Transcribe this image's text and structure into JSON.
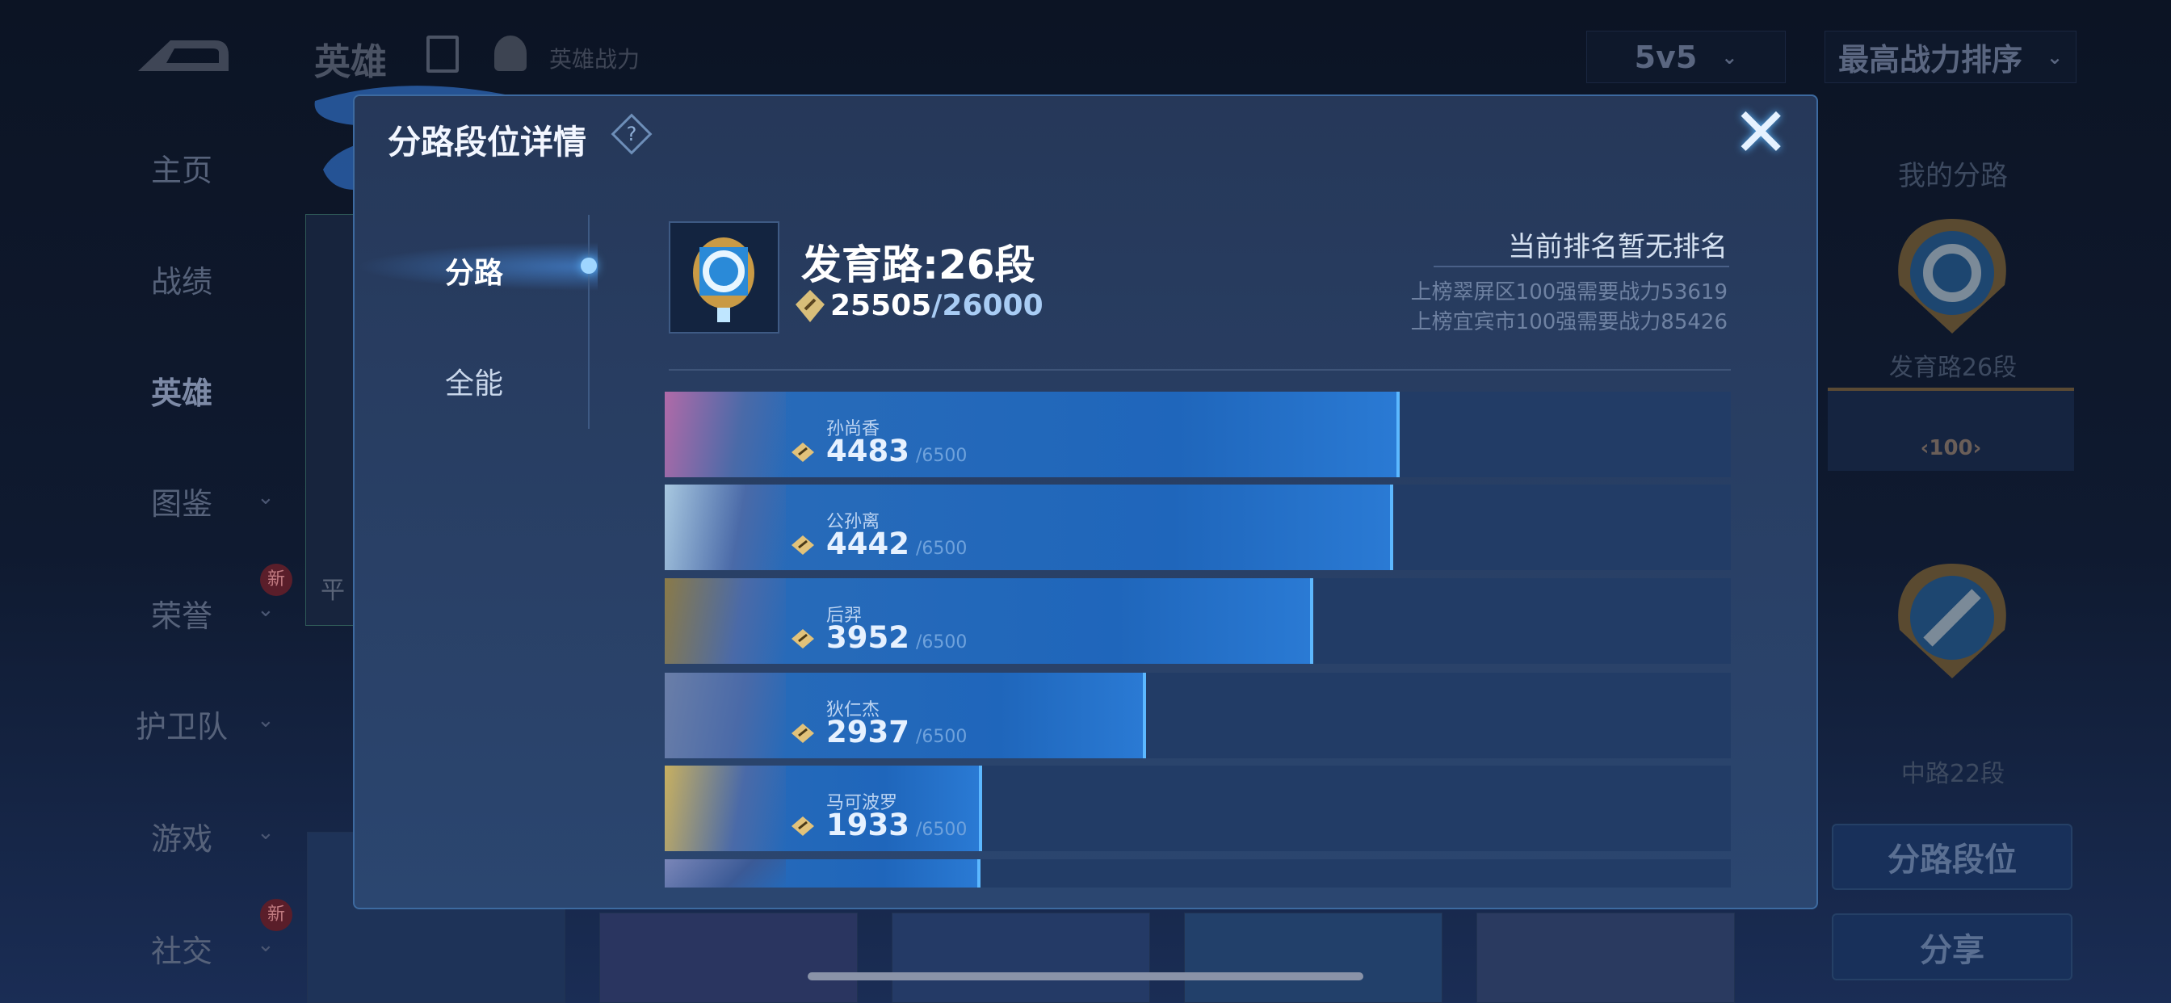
{
  "header": {
    "title": "英雄",
    "power_label": "英雄战力",
    "mode_select": "5v5",
    "sort_select": "最高战力排序"
  },
  "sidebar": {
    "items": [
      {
        "label": "主页",
        "chevron": false,
        "new": false
      },
      {
        "label": "战绩",
        "chevron": false,
        "new": false
      },
      {
        "label": "英雄",
        "chevron": false,
        "new": false,
        "active": true
      },
      {
        "label": "图鉴",
        "chevron": true,
        "new": false
      },
      {
        "label": "荣誉",
        "chevron": true,
        "new": true
      },
      {
        "label": "护卫队",
        "chevron": true,
        "new": false
      },
      {
        "label": "游戏",
        "chevron": true,
        "new": false
      },
      {
        "label": "社交",
        "chevron": true,
        "new": true
      }
    ],
    "new_badge": "新"
  },
  "right_panel": {
    "title": "我的分路",
    "lane1": "发育路26段",
    "banner_rank": "‹100›",
    "lane2": "中路22段",
    "lane_rank_button": "分路段位",
    "share_button": "分享"
  },
  "background_card": {
    "partial_text": "平"
  },
  "modal": {
    "title": "分路段位详情",
    "help_icon": "question-icon",
    "close_icon": "close-icon",
    "tabs": [
      {
        "label": "分路",
        "active": true
      },
      {
        "label": "全能",
        "active": false
      }
    ],
    "lane_title": "发育路:26段",
    "points_current": "25505",
    "points_sep": "/",
    "points_target": "26000",
    "rank_status": "当前排名暂无排名",
    "rank_req": [
      "上榜翠屏区100强需要战力53619",
      "上榜宜宾市100强需要战力85426"
    ],
    "max_power": 6500,
    "heroes": [
      {
        "name": "孙尚香",
        "power": 4483,
        "max": "/6500"
      },
      {
        "name": "公孙离",
        "power": 4442,
        "max": "/6500"
      },
      {
        "name": "后羿",
        "power": 3952,
        "max": "/6500"
      },
      {
        "name": "狄仁杰",
        "power": 2937,
        "max": "/6500"
      },
      {
        "name": "马可波罗",
        "power": 1933,
        "max": "/6500"
      }
    ],
    "partial_row_fill": 0.296
  },
  "colors": {
    "accent": "#5cb8ff",
    "bar_fill": "#1f66bb",
    "bar_track": "#223c66",
    "modal_bg": "#263859",
    "gold": "#e2c27a"
  }
}
